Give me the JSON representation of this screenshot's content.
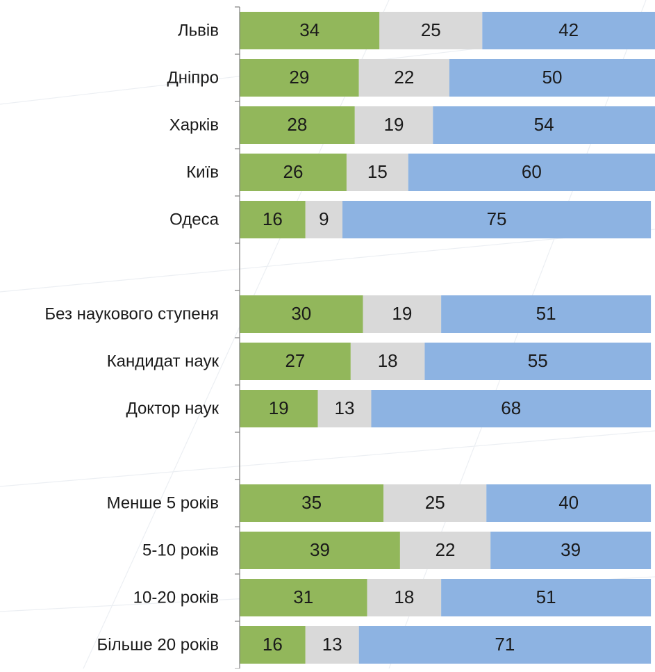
{
  "chart_data": {
    "type": "bar",
    "orientation": "horizontal",
    "stacked": true,
    "legend": "none",
    "grid": false,
    "xlim": [
      0,
      101
    ],
    "categories": [
      "Львів",
      "Дніпро",
      "Харків",
      "Київ",
      "Одеса",
      "",
      "Без наукового ступеня",
      "Кандидат наук",
      "Доктор наук",
      "",
      "Менше 5 років",
      "5-10 років",
      "10-20 років",
      "Більше 20 років"
    ],
    "series": [
      {
        "color": "#92B75B",
        "values": [
          34,
          29,
          28,
          26,
          16,
          null,
          30,
          27,
          19,
          null,
          35,
          39,
          31,
          16
        ]
      },
      {
        "color": "#D9D9D9",
        "values": [
          25,
          22,
          19,
          15,
          9,
          null,
          19,
          18,
          13,
          null,
          25,
          22,
          18,
          13
        ]
      },
      {
        "color": "#8DB3E2",
        "values": [
          42,
          50,
          54,
          60,
          75,
          null,
          51,
          55,
          68,
          null,
          40,
          39,
          51,
          71
        ]
      }
    ]
  }
}
